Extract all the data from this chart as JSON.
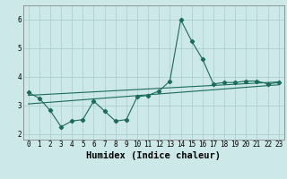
{
  "xlabel": "Humidex (Indice chaleur)",
  "ylabel": "",
  "bg_color": "#cce8e8",
  "line_color": "#1a6b5a",
  "grid_color": "#aacccc",
  "xlim": [
    -0.5,
    23.5
  ],
  "ylim": [
    1.8,
    6.5
  ],
  "xticks": [
    0,
    1,
    2,
    3,
    4,
    5,
    6,
    7,
    8,
    9,
    10,
    11,
    12,
    13,
    14,
    15,
    16,
    17,
    18,
    19,
    20,
    21,
    22,
    23
  ],
  "yticks": [
    2,
    3,
    4,
    5,
    6
  ],
  "line1_x": [
    0,
    1,
    2,
    3,
    4,
    5,
    6,
    7,
    8,
    9,
    10,
    11,
    12,
    13,
    14,
    15,
    16,
    17,
    18,
    19,
    20,
    21,
    22,
    23
  ],
  "line1_y": [
    3.45,
    3.25,
    2.82,
    2.25,
    2.45,
    2.5,
    3.15,
    2.8,
    2.45,
    2.5,
    3.3,
    3.35,
    3.5,
    3.85,
    6.0,
    5.25,
    4.62,
    3.75,
    3.8,
    3.8,
    3.85,
    3.85,
    3.75,
    3.8
  ],
  "line2_x": [
    0,
    23
  ],
  "line2_y": [
    3.35,
    3.82
  ],
  "line3_x": [
    0,
    23
  ],
  "line3_y": [
    3.05,
    3.72
  ],
  "marker": "D",
  "markersize": 2.2,
  "linewidth": 0.8,
  "xlabel_fontsize": 7.5,
  "tick_fontsize": 5.5
}
